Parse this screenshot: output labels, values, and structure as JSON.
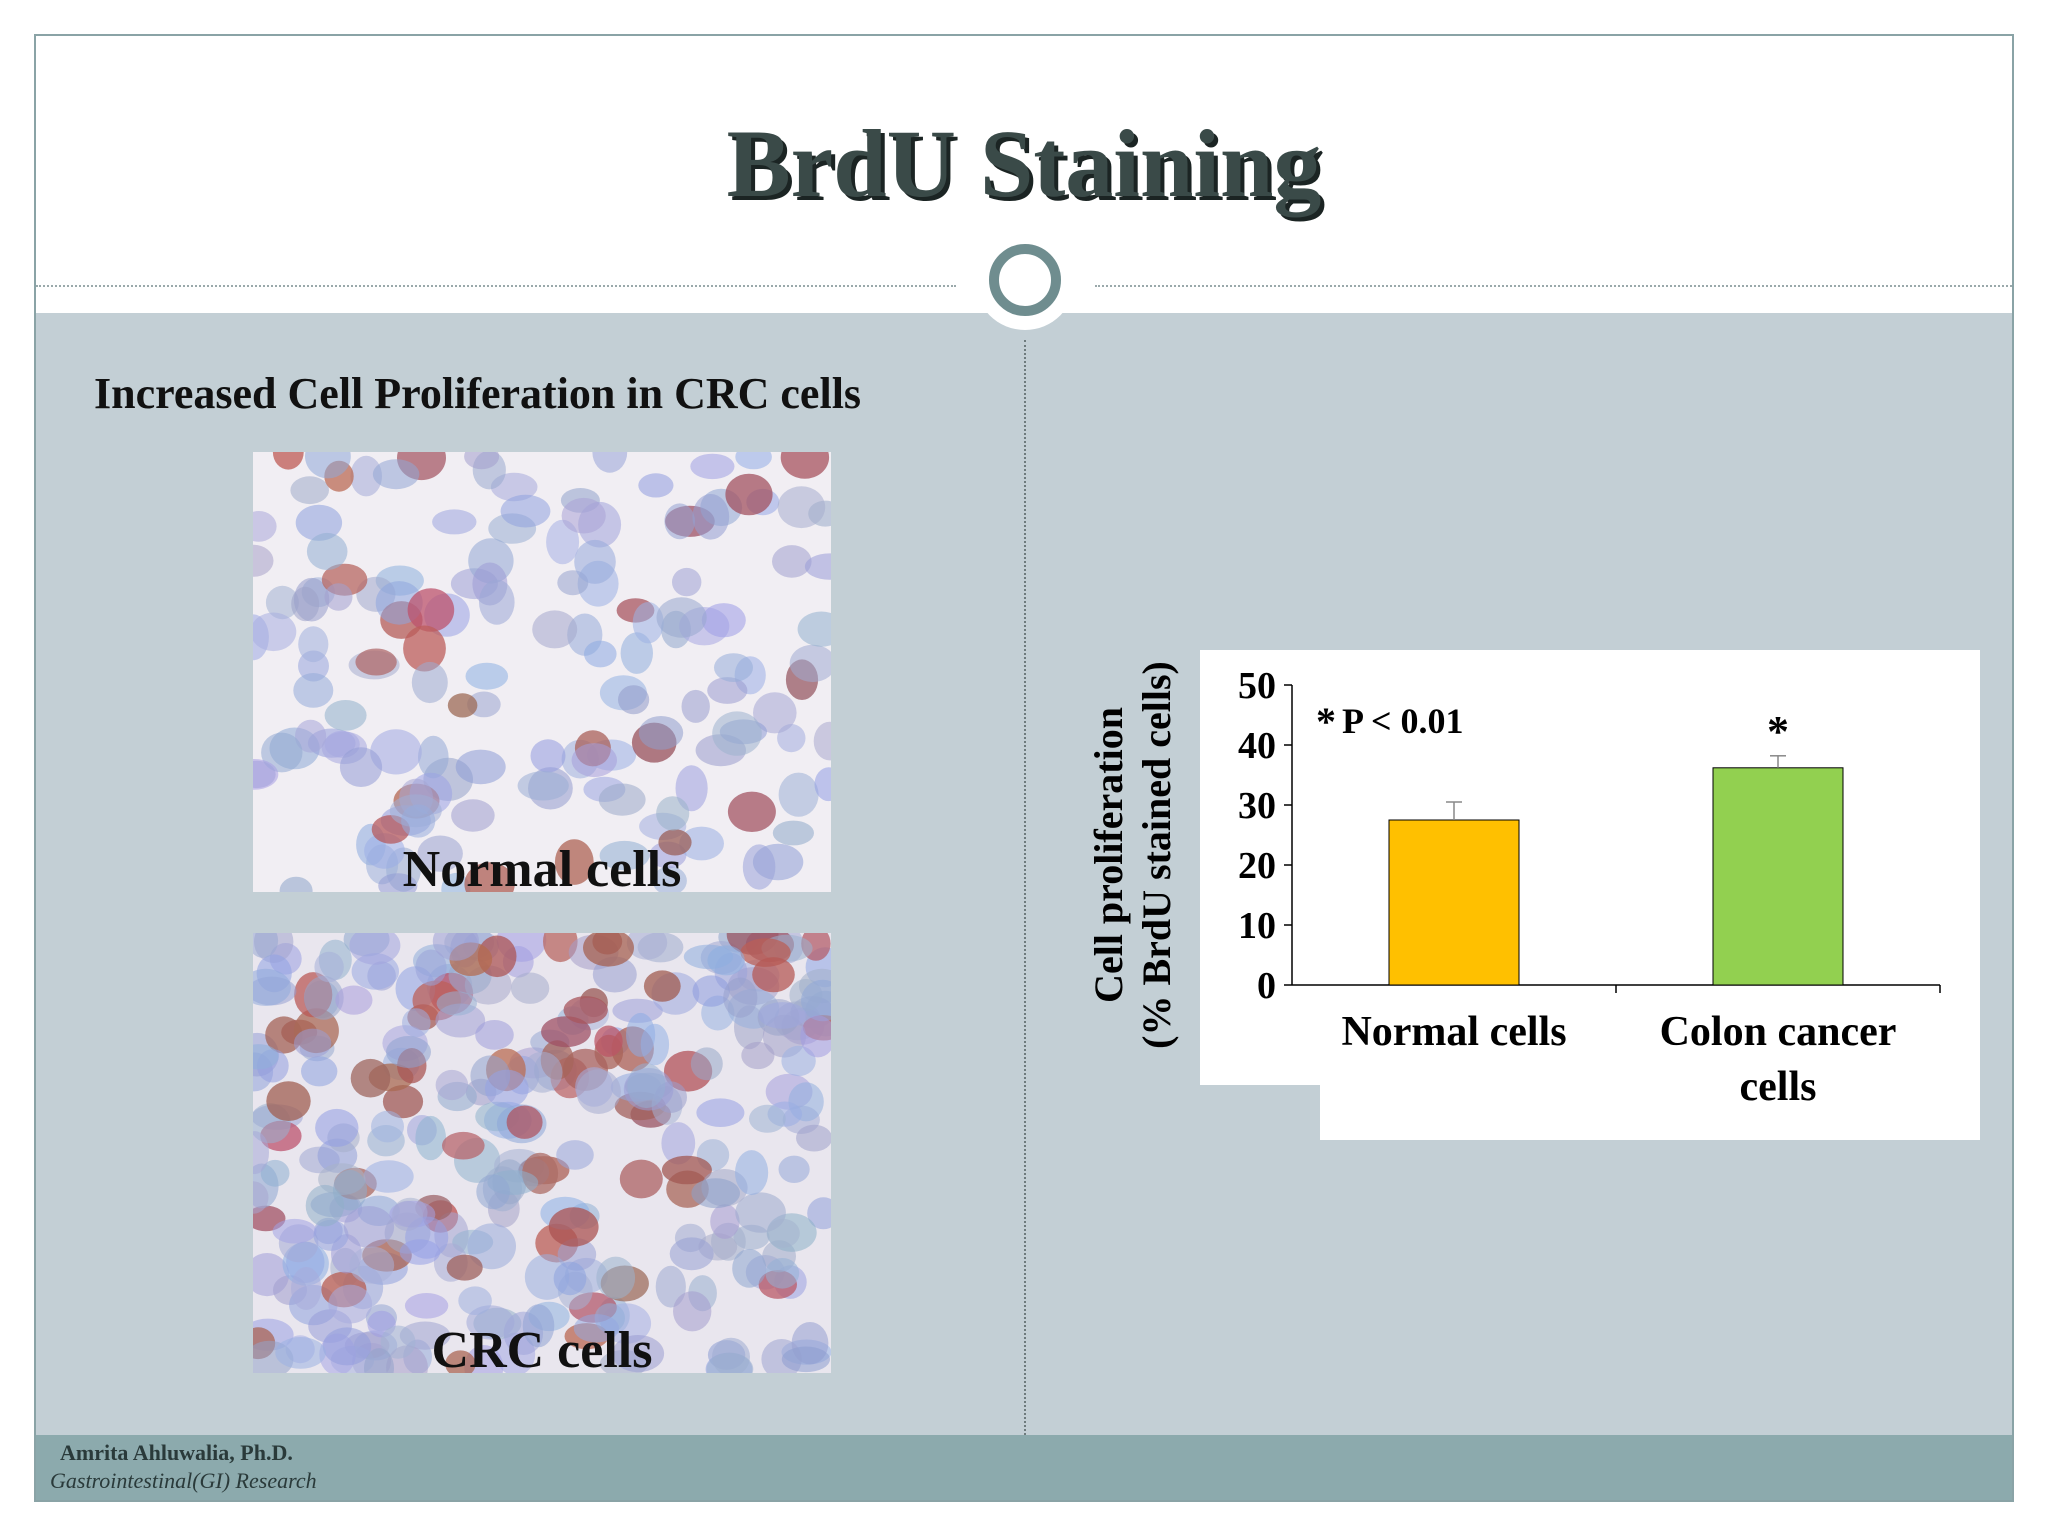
{
  "slide": {
    "title": "BrdU Staining",
    "subtitle": "Increased Cell Proliferation in CRC cells",
    "footer": {
      "author": "Amrita Ahluwalia, Ph.D.",
      "department": "Gastrointestinal(GI) Research"
    }
  },
  "images": [
    {
      "label": "Normal cells",
      "description": "normal-cells-micrograph"
    },
    {
      "label": "CRC cells",
      "description": "crc-cells-micrograph"
    }
  ],
  "colors": {
    "background_panel": "#c3cfd5",
    "footer": "#8caaad",
    "bar_normal": "#ffc000",
    "bar_cancer": "#92d050",
    "accent_ring": "#6f8d8f"
  },
  "chart_data": {
    "type": "bar",
    "categories": [
      "Normal cells",
      "Colon cancer cells"
    ],
    "category_lines": [
      [
        "Normal cells"
      ],
      [
        "Colon cancer",
        "cells"
      ]
    ],
    "values": [
      27.5,
      36.2
    ],
    "errors": [
      3.0,
      2.0
    ],
    "ylabel_lines": [
      "Cell proliferation",
      "(% BrdU stained cells)"
    ],
    "ylim": [
      0,
      50
    ],
    "yticks": [
      0,
      10,
      20,
      30,
      40,
      50
    ],
    "annotations": {
      "significance_note": "P < 0.01",
      "star": "*"
    },
    "grid": false
  }
}
